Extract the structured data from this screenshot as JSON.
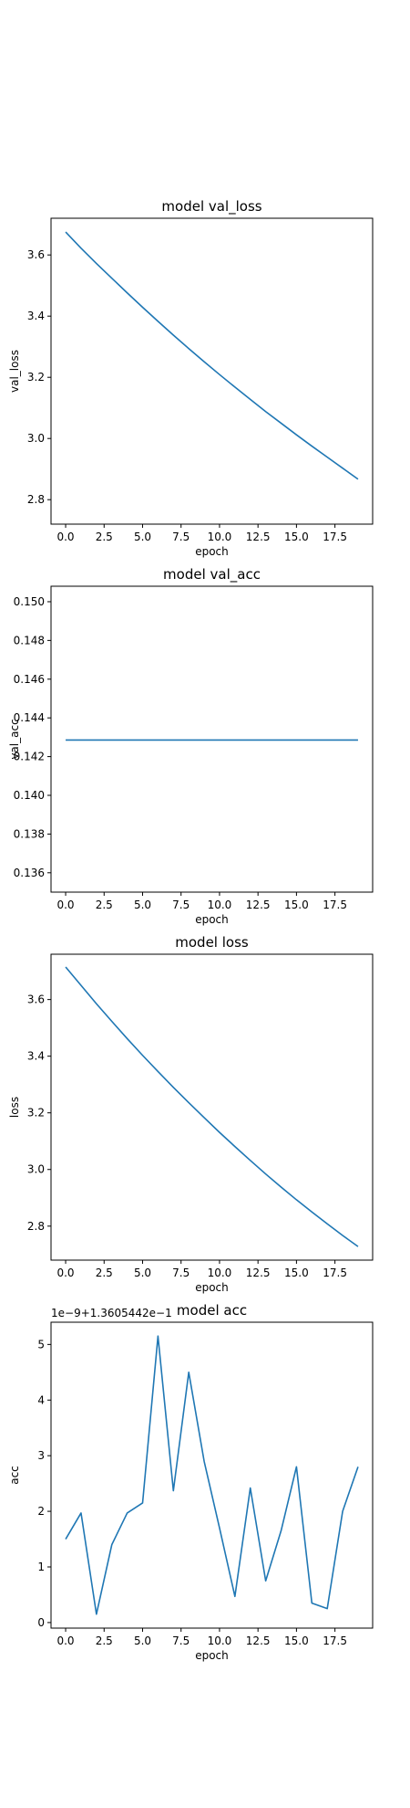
{
  "chart_data": [
    {
      "type": "line",
      "title": "model val_loss",
      "xlabel": "epoch",
      "ylabel": "val_loss",
      "x": [
        0,
        1,
        2,
        3,
        4,
        5,
        6,
        7,
        8,
        9,
        10,
        11,
        12,
        13,
        14,
        15,
        16,
        17,
        18,
        19
      ],
      "series": [
        {
          "values": [
            3.675,
            3.622,
            3.572,
            3.524,
            3.476,
            3.429,
            3.383,
            3.338,
            3.294,
            3.251,
            3.209,
            3.168,
            3.128,
            3.088,
            3.05,
            3.012,
            2.975,
            2.939,
            2.903,
            2.867
          ]
        }
      ],
      "xlim": [
        -0.95,
        19.95
      ],
      "ylim": [
        2.72,
        3.72
      ],
      "xticks": [
        0,
        2.5,
        5,
        7.5,
        10,
        12.5,
        15,
        17.5
      ],
      "xtick_labels": [
        "0.0",
        "2.5",
        "5.0",
        "7.5",
        "10.0",
        "12.5",
        "15.0",
        "17.5"
      ],
      "yticks": [
        2.8,
        3.0,
        3.2,
        3.4,
        3.6
      ],
      "ytick_labels": [
        "2.8",
        "3.0",
        "3.2",
        "3.4",
        "3.6"
      ],
      "offset_text": "",
      "grid": false,
      "color": "#1f77b4"
    },
    {
      "type": "line",
      "title": "model val_acc",
      "xlabel": "epoch",
      "ylabel": "val_acc",
      "x": [
        0,
        1,
        2,
        3,
        4,
        5,
        6,
        7,
        8,
        9,
        10,
        11,
        12,
        13,
        14,
        15,
        16,
        17,
        18,
        19
      ],
      "series": [
        {
          "values": [
            0.142857,
            0.142857,
            0.142857,
            0.142857,
            0.142857,
            0.142857,
            0.142857,
            0.142857,
            0.142857,
            0.142857,
            0.142857,
            0.142857,
            0.142857,
            0.142857,
            0.142857,
            0.142857,
            0.142857,
            0.142857,
            0.142857,
            0.142857
          ]
        }
      ],
      "xlim": [
        -0.95,
        19.95
      ],
      "ylim": [
        0.135,
        0.1508
      ],
      "xticks": [
        0,
        2.5,
        5,
        7.5,
        10,
        12.5,
        15,
        17.5
      ],
      "xtick_labels": [
        "0.0",
        "2.5",
        "5.0",
        "7.5",
        "10.0",
        "12.5",
        "15.0",
        "17.5"
      ],
      "yticks": [
        0.136,
        0.138,
        0.14,
        0.142,
        0.144,
        0.146,
        0.148,
        0.15
      ],
      "ytick_labels": [
        "0.136",
        "0.138",
        "0.140",
        "0.142",
        "0.144",
        "0.146",
        "0.148",
        "0.150"
      ],
      "offset_text": "",
      "grid": false,
      "color": "#1f77b4"
    },
    {
      "type": "line",
      "title": "model loss",
      "xlabel": "epoch",
      "ylabel": "loss",
      "x": [
        0,
        1,
        2,
        3,
        4,
        5,
        6,
        7,
        8,
        9,
        10,
        11,
        12,
        13,
        14,
        15,
        16,
        17,
        18,
        19
      ],
      "series": [
        {
          "values": [
            3.715,
            3.65,
            3.585,
            3.523,
            3.462,
            3.403,
            3.346,
            3.29,
            3.236,
            3.183,
            3.131,
            3.081,
            3.032,
            2.984,
            2.938,
            2.893,
            2.85,
            2.808,
            2.767,
            2.728
          ]
        }
      ],
      "xlim": [
        -0.95,
        19.95
      ],
      "ylim": [
        2.68,
        3.76
      ],
      "xticks": [
        0,
        2.5,
        5,
        7.5,
        10,
        12.5,
        15,
        17.5
      ],
      "xtick_labels": [
        "0.0",
        "2.5",
        "5.0",
        "7.5",
        "10.0",
        "12.5",
        "15.0",
        "17.5"
      ],
      "yticks": [
        2.8,
        3.0,
        3.2,
        3.4,
        3.6
      ],
      "ytick_labels": [
        "2.8",
        "3.0",
        "3.2",
        "3.4",
        "3.6"
      ],
      "offset_text": "",
      "grid": false,
      "color": "#1f77b4"
    },
    {
      "type": "line",
      "title": "model acc",
      "xlabel": "epoch",
      "ylabel": "acc",
      "x": [
        0,
        1,
        2,
        3,
        4,
        5,
        6,
        7,
        8,
        9,
        10,
        11,
        12,
        13,
        14,
        15,
        16,
        17,
        18,
        19
      ],
      "series": [
        {
          "values": [
            1.5,
            1.97,
            0.15,
            1.4,
            1.97,
            2.15,
            5.15,
            2.37,
            4.5,
            2.9,
            1.7,
            0.47,
            2.42,
            0.75,
            1.65,
            2.8,
            0.35,
            0.25,
            2.0,
            2.8
          ]
        }
      ],
      "value_scale_note": "values shown in units of 1e-9 relative to offset 1.3605442e-1",
      "xlim": [
        -0.95,
        19.95
      ],
      "ylim": [
        -0.1,
        5.4
      ],
      "xticks": [
        0,
        2.5,
        5,
        7.5,
        10,
        12.5,
        15,
        17.5
      ],
      "xtick_labels": [
        "0.0",
        "2.5",
        "5.0",
        "7.5",
        "10.0",
        "12.5",
        "15.0",
        "17.5"
      ],
      "yticks": [
        0,
        1,
        2,
        3,
        4,
        5
      ],
      "ytick_labels": [
        "0",
        "1",
        "2",
        "3",
        "4",
        "5"
      ],
      "offset_text": "1e−9+1.3605442e−1",
      "grid": false,
      "color": "#1f77b4"
    }
  ]
}
